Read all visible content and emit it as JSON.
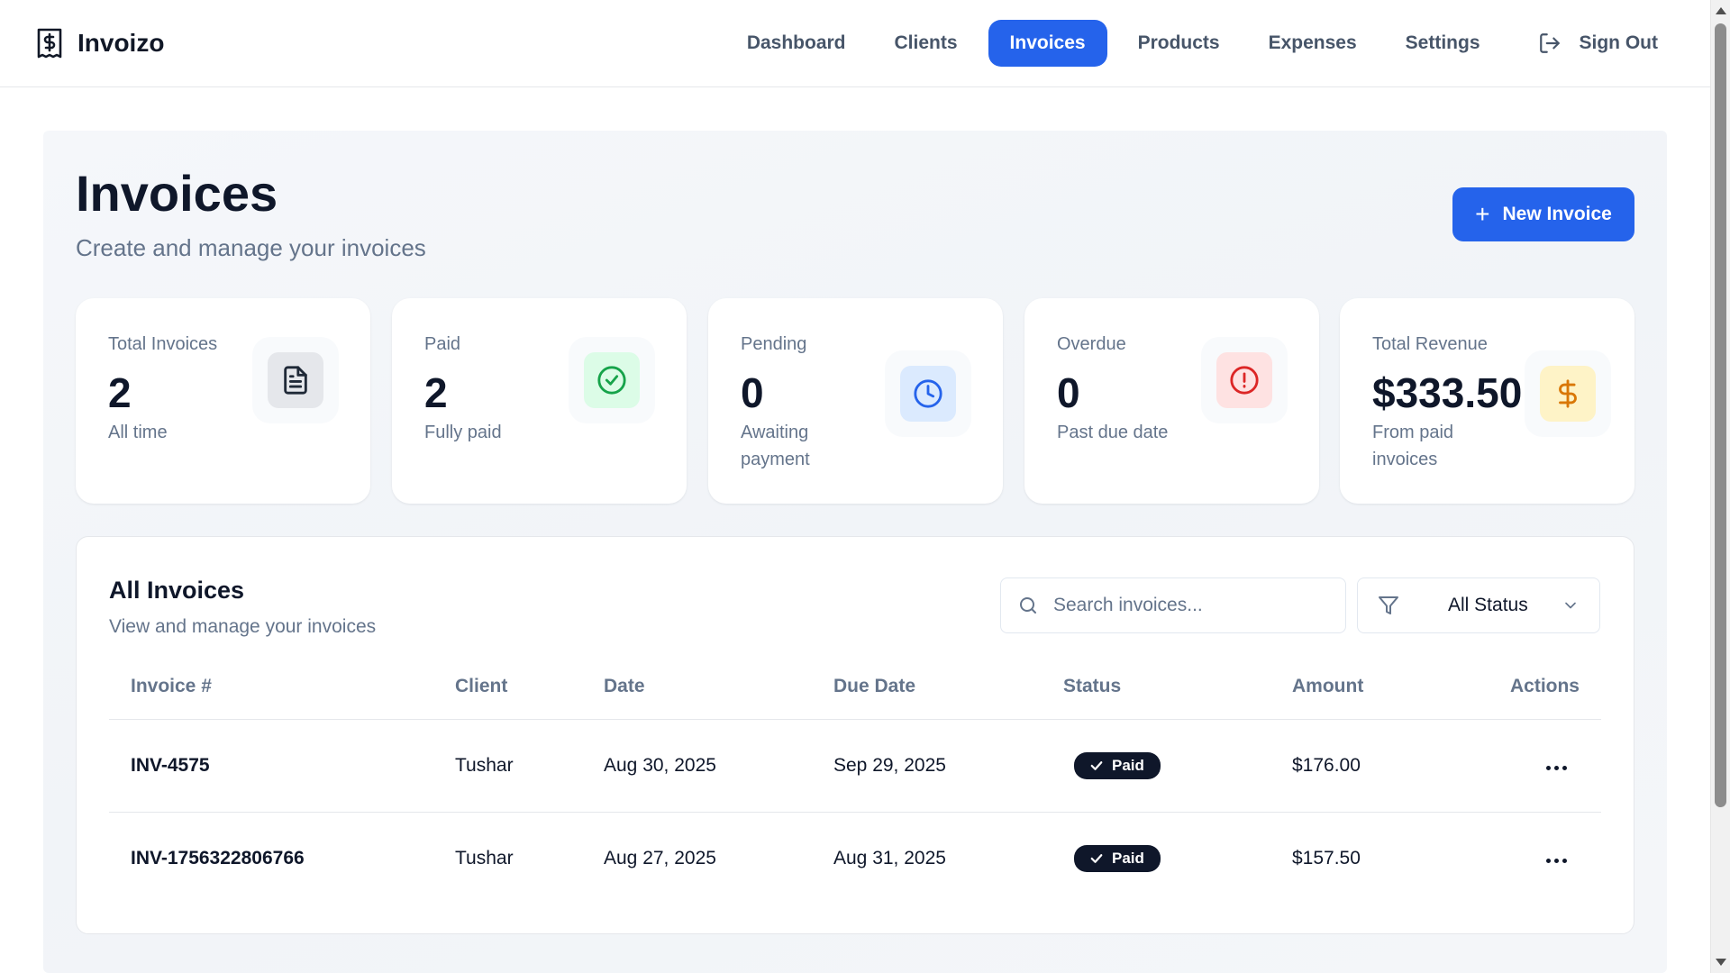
{
  "app": {
    "name": "Invoizo",
    "logo_icon": "dollar-document-icon"
  },
  "nav": {
    "items": [
      {
        "label": "Dashboard",
        "active": false
      },
      {
        "label": "Clients",
        "active": false
      },
      {
        "label": "Invoices",
        "active": true
      },
      {
        "label": "Products",
        "active": false
      },
      {
        "label": "Expenses",
        "active": false
      },
      {
        "label": "Settings",
        "active": false
      }
    ],
    "signout_label": "Sign Out",
    "signout_icon": "logout-icon"
  },
  "header": {
    "title": "Invoices",
    "subtitle": "Create and manage your invoices",
    "new_button_label": "New Invoice"
  },
  "stats": [
    {
      "label": "Total Invoices",
      "value": "2",
      "sub": "All time",
      "icon": "file-text-icon",
      "color": "#1f2937",
      "bg": "#e5e7eb"
    },
    {
      "label": "Paid",
      "value": "2",
      "sub": "Fully paid",
      "icon": "check-circle-icon",
      "color": "#16a34a",
      "bg": "#dcfce7"
    },
    {
      "label": "Pending",
      "value": "0",
      "sub": "Awaiting payment",
      "icon": "clock-icon",
      "color": "#2563eb",
      "bg": "#dbeafe"
    },
    {
      "label": "Overdue",
      "value": "0",
      "sub": "Past due date",
      "icon": "alert-circle-icon",
      "color": "#dc2626",
      "bg": "#fee2e2"
    },
    {
      "label": "Total Revenue",
      "value": "$333.50",
      "sub": "From paid invoices",
      "icon": "dollar-icon",
      "color": "#d97706",
      "bg": "#fef3c7"
    }
  ],
  "invoices_panel": {
    "title": "All Invoices",
    "subtitle": "View and manage your invoices",
    "search_placeholder": "Search invoices...",
    "status_filter": "All Status",
    "columns": [
      "Invoice #",
      "Client",
      "Date",
      "Due Date",
      "Status",
      "Amount",
      "Actions"
    ],
    "rows": [
      {
        "invoice": "INV-4575",
        "client": "Tushar",
        "date": "Aug 30, 2025",
        "due": "Sep 29, 2025",
        "status": "Paid",
        "amount": "$176.00"
      },
      {
        "invoice": "INV-1756322806766",
        "client": "Tushar",
        "date": "Aug 27, 2025",
        "due": "Aug 31, 2025",
        "status": "Paid",
        "amount": "$157.50"
      }
    ]
  },
  "colors": {
    "accent": "#2563eb",
    "text": "#0f172a",
    "muted": "#64748b"
  }
}
